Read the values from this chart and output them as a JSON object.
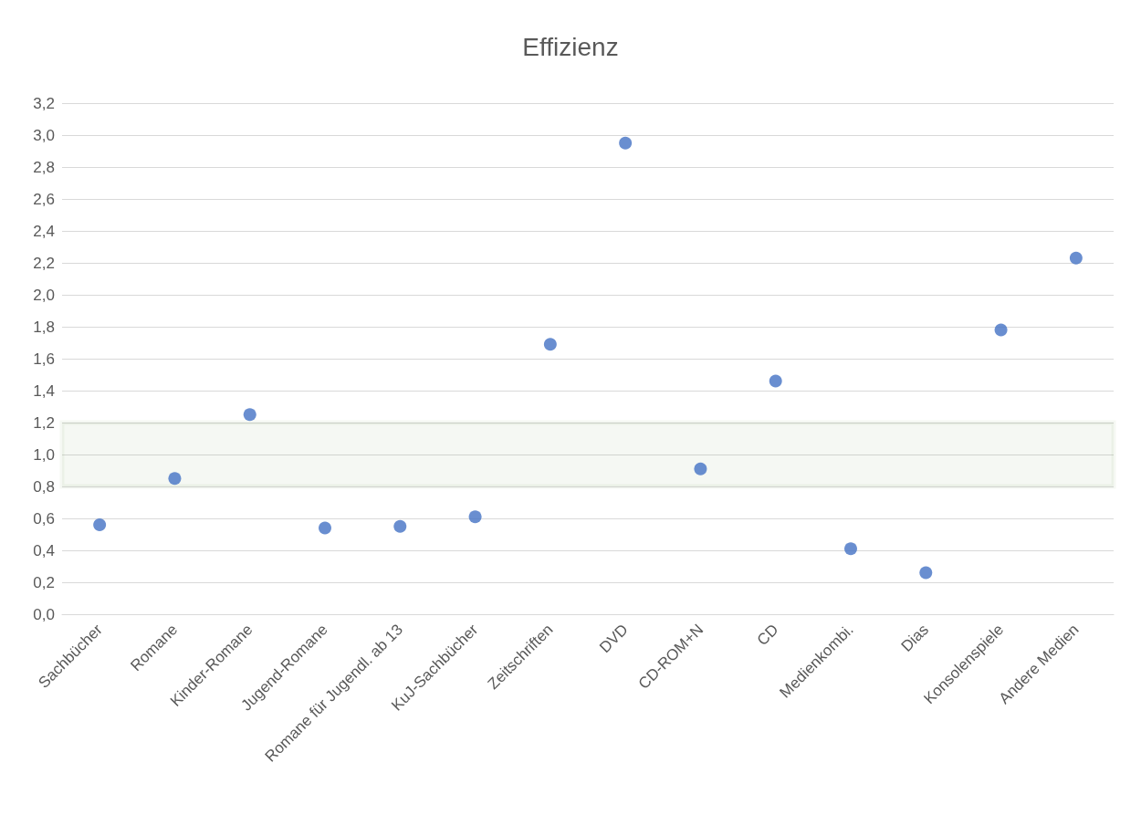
{
  "chart_data": {
    "type": "scatter",
    "title": "Effizienz",
    "categories": [
      "Sachbücher",
      "Romane",
      "Kinder-Romane",
      "Jugend-Romane",
      "Romane für Jugendl. ab 13",
      "KuJ-Sachbücher",
      "Zeitschriften",
      "DVD",
      "CD-ROM+N",
      "CD",
      "Medienkombi.",
      "Dias",
      "Konsolenspiele",
      "Andere Medien"
    ],
    "values": [
      0.56,
      0.85,
      1.25,
      0.54,
      0.55,
      0.61,
      1.69,
      2.95,
      0.91,
      1.46,
      0.41,
      0.26,
      1.78,
      2.23
    ],
    "color": "#4472c4",
    "marker": "circle",
    "ylim": [
      0,
      3.2
    ],
    "yticks": [
      {
        "value": 0,
        "label": "0,0"
      },
      {
        "value": 0.2,
        "label": "0,2"
      },
      {
        "value": 0.4,
        "label": "0,4"
      },
      {
        "value": 0.6,
        "label": "0,6"
      },
      {
        "value": 0.8,
        "label": "0,8"
      },
      {
        "value": 1,
        "label": "1,0"
      },
      {
        "value": 1.2,
        "label": "1,2"
      },
      {
        "value": 1.4,
        "label": "1,4"
      },
      {
        "value": 1.6,
        "label": "1,6"
      },
      {
        "value": 1.8,
        "label": "1,8"
      },
      {
        "value": 2,
        "label": "2,0"
      },
      {
        "value": 2.2,
        "label": "2,2"
      },
      {
        "value": 2.4,
        "label": "2,4"
      },
      {
        "value": 2.6,
        "label": "2,6"
      },
      {
        "value": 2.8,
        "label": "2,8"
      },
      {
        "value": 3,
        "label": "3,0"
      },
      {
        "value": 3.2,
        "label": "3,2"
      }
    ],
    "grid": "y",
    "bands": [
      {
        "axis": "y",
        "from": 0.8,
        "to": 1.2,
        "color": "#548235"
      }
    ]
  }
}
